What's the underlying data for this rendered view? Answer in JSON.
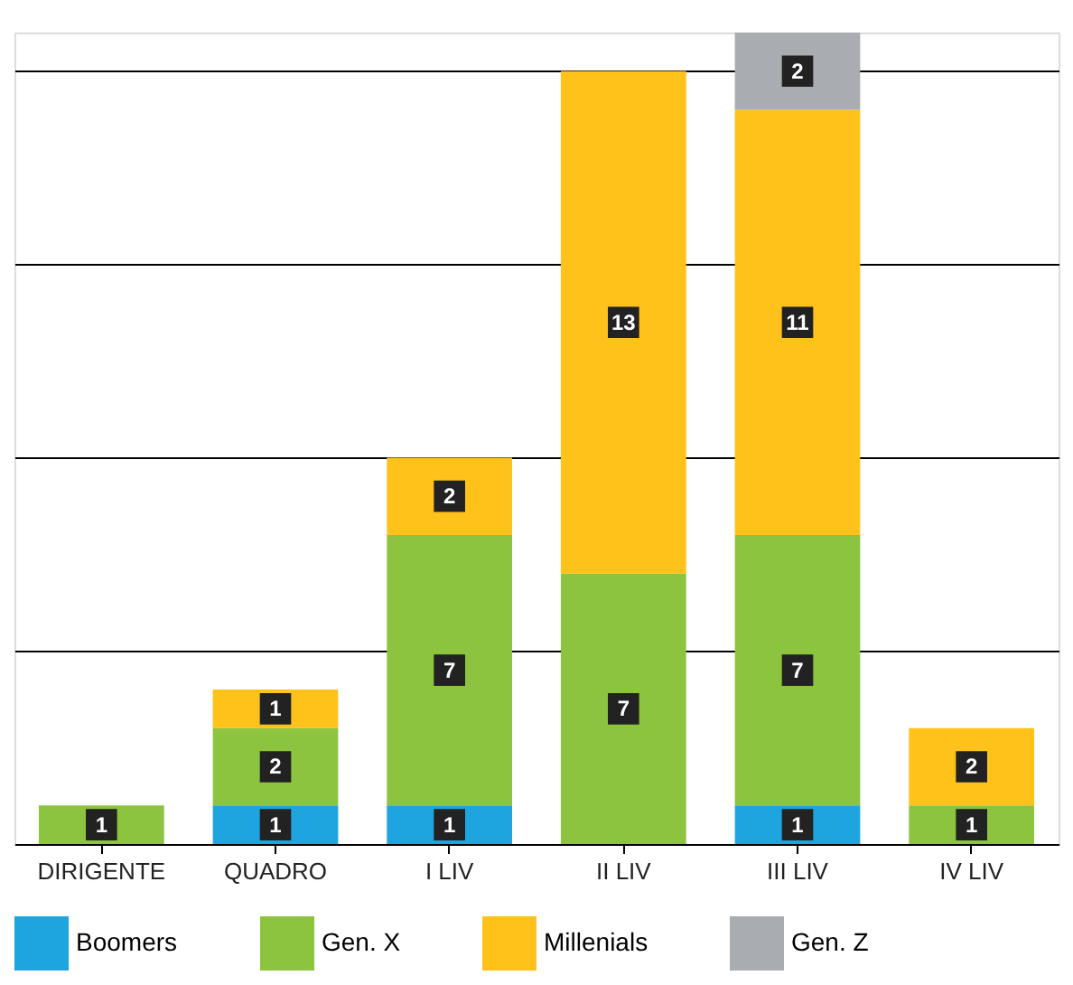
{
  "chart_data": {
    "type": "bar",
    "stacked": true,
    "data_labels": true,
    "grid": "y",
    "legend": "bottom",
    "tick_labels": "x",
    "categories": [
      "DIRIGENTE",
      "QUADRO",
      "I LIV",
      "II LIV",
      "III LIV",
      "IV LIV"
    ],
    "ylim": [
      0,
      21
    ],
    "yticks": [
      {
        "value": 5,
        "label": null
      },
      {
        "value": 10,
        "label": null
      },
      {
        "value": 15,
        "label": null
      },
      {
        "value": 20,
        "label": null
      }
    ],
    "series": [
      {
        "name": "Boomers",
        "color": "#1ea5e0",
        "values": [
          null,
          1,
          1,
          null,
          1,
          null
        ]
      },
      {
        "name": "Gen. X",
        "color": "#8cc43f",
        "values": [
          1,
          2,
          7,
          7,
          7,
          1
        ]
      },
      {
        "name": "Millenials",
        "color": "#ffc21a",
        "values": [
          null,
          1,
          2,
          13,
          11,
          2
        ]
      },
      {
        "name": "Gen. Z",
        "color": "#a9acb0",
        "values": [
          null,
          null,
          null,
          null,
          2,
          null
        ]
      }
    ]
  }
}
